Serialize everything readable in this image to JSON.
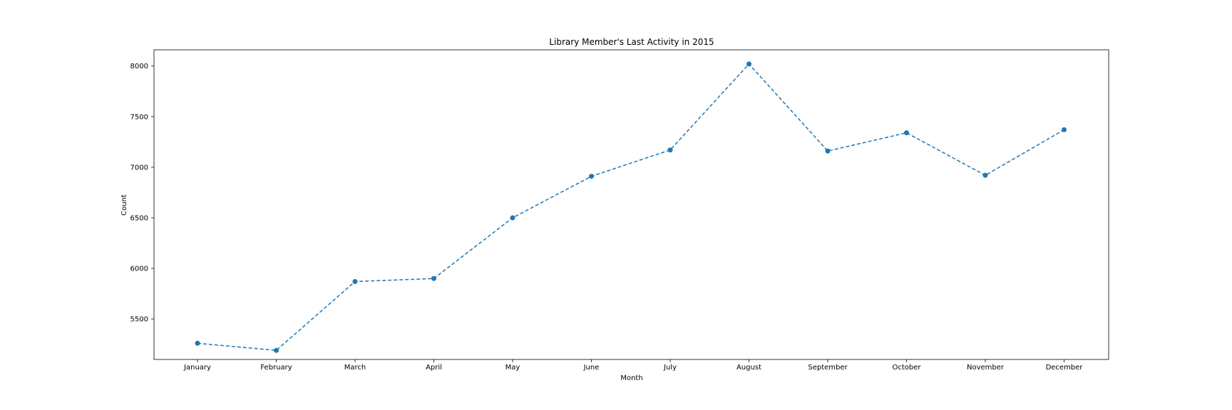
{
  "chart_data": {
    "type": "line",
    "title": "Library Member's Last Activity in 2015",
    "xlabel": "Month",
    "ylabel": "Count",
    "categories": [
      "January",
      "February",
      "March",
      "April",
      "May",
      "June",
      "July",
      "August",
      "September",
      "October",
      "November",
      "December"
    ],
    "series": [
      {
        "values": [
          5260,
          5190,
          5870,
          5900,
          6500,
          6910,
          7170,
          8020,
          7160,
          7340,
          6920,
          7370
        ],
        "color": "#1f77b4",
        "line_style": "dashed",
        "marker": "circle"
      }
    ],
    "yticks": [
      5500,
      6000,
      6500,
      7000,
      7500,
      8000
    ],
    "ylim": [
      5100,
      8160
    ],
    "grid": false,
    "legend": "none"
  }
}
